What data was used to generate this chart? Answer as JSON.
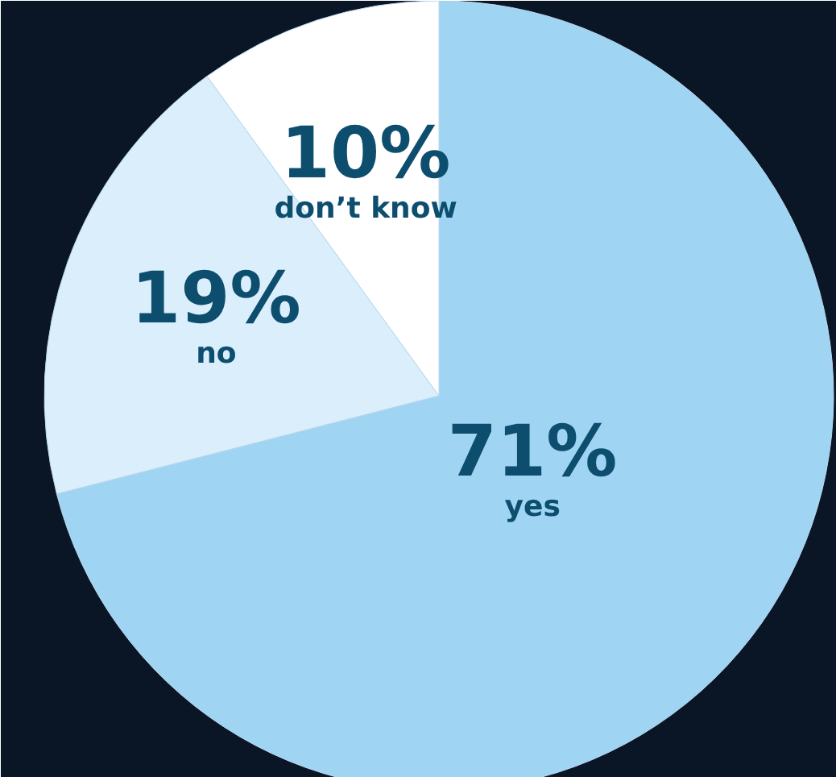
{
  "chart_data": {
    "type": "pie",
    "categories": [
      "yes",
      "no",
      "don’t know"
    ],
    "values": [
      71,
      19,
      10
    ],
    "value_labels": [
      "71%",
      "19%",
      "10%"
    ],
    "colors": [
      "#a0d4f3",
      "#dbeefb",
      "#ffffff"
    ]
  }
}
